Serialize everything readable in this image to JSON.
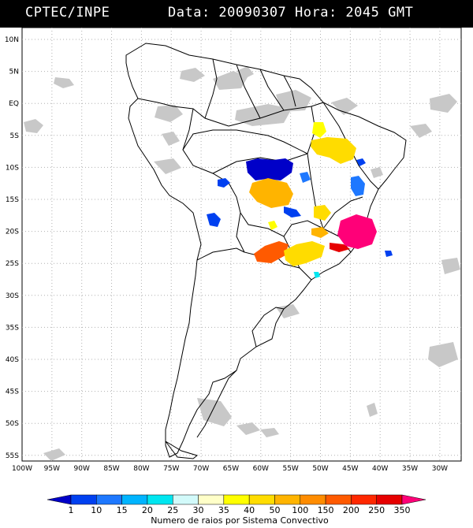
{
  "header": {
    "org": "CPTEC/INPE",
    "stamp": "Data: 20090307 Hora: 2045 GMT"
  },
  "map": {
    "lat_labels": [
      "10N",
      "5N",
      "EQ",
      "5S",
      "10S",
      "15S",
      "20S",
      "25S",
      "30S",
      "35S",
      "40S",
      "45S",
      "50S",
      "55S"
    ],
    "lon_labels": [
      "100W",
      "95W",
      "90W",
      "85W",
      "80W",
      "75W",
      "70W",
      "65W",
      "60W",
      "55W",
      "50W",
      "45W",
      "40W",
      "35W",
      "30W"
    ],
    "region": "South America"
  },
  "colorbar": {
    "ticks": [
      "1",
      "10",
      "15",
      "20",
      "25",
      "30",
      "35",
      "40",
      "50",
      "100",
      "150",
      "200",
      "250",
      "350"
    ],
    "colors": [
      "#0000c8",
      "#0040f0",
      "#1e78ff",
      "#00b4ff",
      "#00e6f0",
      "#d2fafa",
      "#ffffc8",
      "#ffff00",
      "#ffdc00",
      "#ffb400",
      "#ff8c00",
      "#ff5a00",
      "#ff2800",
      "#e60000",
      "#ff0078"
    ],
    "caption": "Numero de raios por Sistema Convectivo"
  }
}
